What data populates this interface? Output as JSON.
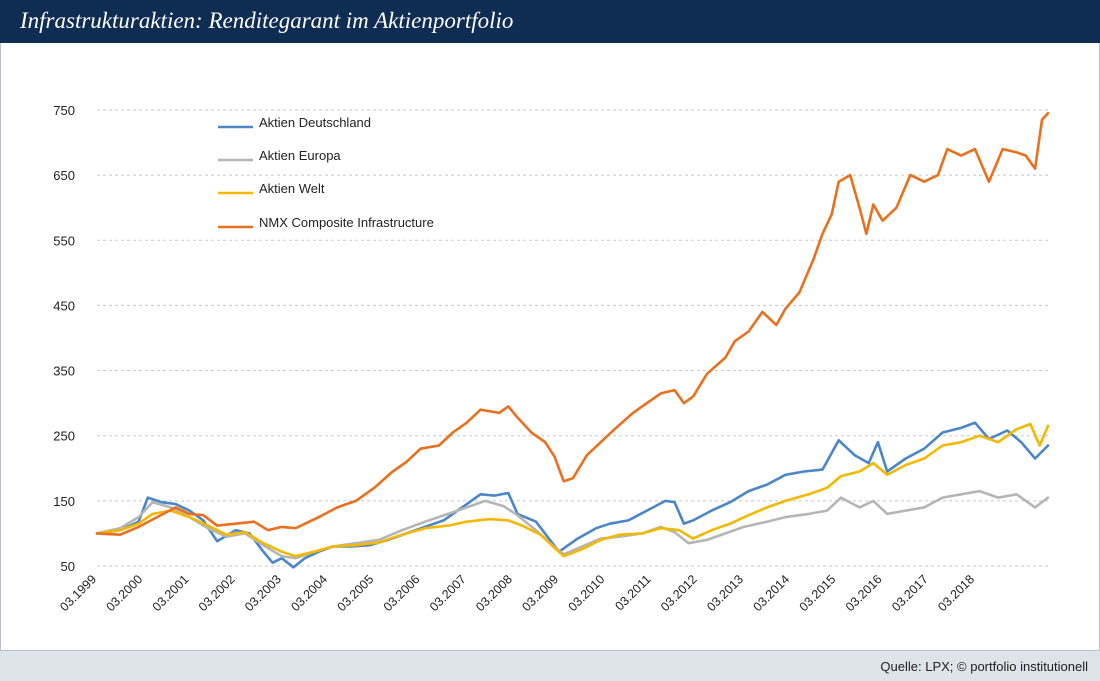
{
  "header": {
    "title": "Infrastrukturaktien: Renditegarant im Aktienportfolio"
  },
  "footer": {
    "source": "Quelle: LPX; © portfolio institutionell"
  },
  "colors": {
    "header_bg": "#0f2c52",
    "footer_bg": "#dfe3ea",
    "grid": "#c8c8c8"
  },
  "chart_data": {
    "type": "line",
    "title": "Infrastrukturaktien: Renditegarant im Aktienportfolio",
    "xlabel": "",
    "ylabel": "",
    "grid": true,
    "legend_position": "top-left",
    "x_start": 1999.0,
    "x_end": 2019.58,
    "xlim": [
      1999.0,
      2019.58
    ],
    "ylim": [
      50,
      750
    ],
    "y_ticks": [
      50,
      150,
      250,
      350,
      450,
      550,
      650,
      750
    ],
    "y_tick_labels": [
      "50",
      "150",
      "250",
      "350",
      "450",
      "550",
      "650",
      "750"
    ],
    "x_ticks": [
      1999,
      2000,
      2001,
      2002,
      2003,
      2004,
      2005,
      2006,
      2007,
      2008,
      2009,
      2010,
      2011,
      2012,
      2013,
      2014,
      2015,
      2016,
      2017,
      2018
    ],
    "x_tick_labels": [
      "03.1999",
      "03.2000",
      "03.2001",
      "03.2002",
      "03.2003",
      "03.2004",
      "03.2005",
      "03.2006",
      "03.2007",
      "03.2008",
      "03.2009",
      "03.2010",
      "03.2011",
      "03.2012",
      "03.2013",
      "03.2014",
      "03.2015",
      "03.2016",
      "03.2017",
      "03.2018"
    ],
    "series": [
      {
        "name": "Aktien Deutschland",
        "color": "#4a86c8",
        "points": [
          [
            1999.0,
            100
          ],
          [
            1999.5,
            105
          ],
          [
            1999.9,
            118
          ],
          [
            2000.1,
            155
          ],
          [
            2000.4,
            148
          ],
          [
            2000.7,
            145
          ],
          [
            2001.0,
            135
          ],
          [
            2001.3,
            120
          ],
          [
            2001.6,
            88
          ],
          [
            2002.0,
            105
          ],
          [
            2002.3,
            100
          ],
          [
            2002.6,
            72
          ],
          [
            2002.8,
            55
          ],
          [
            2003.0,
            62
          ],
          [
            2003.25,
            48
          ],
          [
            2003.5,
            62
          ],
          [
            2003.8,
            72
          ],
          [
            2004.1,
            80
          ],
          [
            2004.5,
            80
          ],
          [
            2004.9,
            82
          ],
          [
            2005.3,
            90
          ],
          [
            2005.7,
            100
          ],
          [
            2006.1,
            110
          ],
          [
            2006.5,
            120
          ],
          [
            2006.9,
            140
          ],
          [
            2007.3,
            160
          ],
          [
            2007.6,
            158
          ],
          [
            2007.9,
            162
          ],
          [
            2008.1,
            130
          ],
          [
            2008.5,
            118
          ],
          [
            2008.8,
            90
          ],
          [
            2009.0,
            72
          ],
          [
            2009.4,
            92
          ],
          [
            2009.8,
            108
          ],
          [
            2010.1,
            115
          ],
          [
            2010.5,
            120
          ],
          [
            2010.9,
            135
          ],
          [
            2011.3,
            150
          ],
          [
            2011.5,
            148
          ],
          [
            2011.7,
            115
          ],
          [
            2011.9,
            120
          ],
          [
            2012.3,
            135
          ],
          [
            2012.7,
            148
          ],
          [
            2013.1,
            165
          ],
          [
            2013.5,
            175
          ],
          [
            2013.9,
            190
          ],
          [
            2014.3,
            195
          ],
          [
            2014.7,
            198
          ],
          [
            2015.05,
            243
          ],
          [
            2015.4,
            220
          ],
          [
            2015.7,
            208
          ],
          [
            2015.9,
            240
          ],
          [
            2016.1,
            195
          ],
          [
            2016.5,
            215
          ],
          [
            2016.9,
            230
          ],
          [
            2017.3,
            255
          ],
          [
            2017.7,
            262
          ],
          [
            2018.0,
            270
          ],
          [
            2018.3,
            245
          ],
          [
            2018.7,
            258
          ],
          [
            2019.0,
            240
          ],
          [
            2019.3,
            215
          ],
          [
            2019.58,
            235
          ]
        ]
      },
      {
        "name": "Aktien Europa",
        "color": "#b5b5b5",
        "points": [
          [
            1999.0,
            100
          ],
          [
            1999.5,
            108
          ],
          [
            1999.9,
            125
          ],
          [
            2000.2,
            148
          ],
          [
            2000.6,
            140
          ],
          [
            2001.0,
            125
          ],
          [
            2001.4,
            108
          ],
          [
            2001.8,
            95
          ],
          [
            2002.2,
            100
          ],
          [
            2002.6,
            82
          ],
          [
            2003.0,
            65
          ],
          [
            2003.3,
            62
          ],
          [
            2003.7,
            72
          ],
          [
            2004.1,
            80
          ],
          [
            2004.6,
            85
          ],
          [
            2005.1,
            90
          ],
          [
            2005.6,
            105
          ],
          [
            2006.1,
            118
          ],
          [
            2006.6,
            130
          ],
          [
            2007.0,
            140
          ],
          [
            2007.4,
            150
          ],
          [
            2007.8,
            142
          ],
          [
            2008.1,
            128
          ],
          [
            2008.5,
            105
          ],
          [
            2008.8,
            85
          ],
          [
            2009.1,
            68
          ],
          [
            2009.5,
            80
          ],
          [
            2009.9,
            92
          ],
          [
            2010.3,
            95
          ],
          [
            2010.8,
            100
          ],
          [
            2011.2,
            110
          ],
          [
            2011.5,
            102
          ],
          [
            2011.8,
            85
          ],
          [
            2012.2,
            90
          ],
          [
            2012.6,
            100
          ],
          [
            2013.0,
            110
          ],
          [
            2013.5,
            118
          ],
          [
            2013.9,
            125
          ],
          [
            2014.4,
            130
          ],
          [
            2014.8,
            135
          ],
          [
            2015.1,
            155
          ],
          [
            2015.5,
            140
          ],
          [
            2015.8,
            150
          ],
          [
            2016.1,
            130
          ],
          [
            2016.5,
            135
          ],
          [
            2016.9,
            140
          ],
          [
            2017.3,
            155
          ],
          [
            2017.7,
            160
          ],
          [
            2018.1,
            165
          ],
          [
            2018.5,
            155
          ],
          [
            2018.9,
            160
          ],
          [
            2019.3,
            140
          ],
          [
            2019.58,
            155
          ]
        ]
      },
      {
        "name": "Aktien Welt",
        "color": "#f5b800",
        "points": [
          [
            1999.0,
            100
          ],
          [
            1999.5,
            105
          ],
          [
            1999.9,
            115
          ],
          [
            2000.2,
            130
          ],
          [
            2000.6,
            135
          ],
          [
            2001.0,
            125
          ],
          [
            2001.4,
            112
          ],
          [
            2001.8,
            98
          ],
          [
            2002.2,
            102
          ],
          [
            2002.6,
            85
          ],
          [
            2003.0,
            72
          ],
          [
            2003.3,
            65
          ],
          [
            2003.7,
            72
          ],
          [
            2004.1,
            80
          ],
          [
            2004.6,
            82
          ],
          [
            2005.1,
            86
          ],
          [
            2005.6,
            98
          ],
          [
            2006.1,
            108
          ],
          [
            2006.6,
            112
          ],
          [
            2007.0,
            118
          ],
          [
            2007.5,
            122
          ],
          [
            2007.9,
            120
          ],
          [
            2008.2,
            112
          ],
          [
            2008.6,
            98
          ],
          [
            2008.9,
            78
          ],
          [
            2009.1,
            65
          ],
          [
            2009.5,
            76
          ],
          [
            2009.9,
            90
          ],
          [
            2010.3,
            98
          ],
          [
            2010.8,
            100
          ],
          [
            2011.2,
            108
          ],
          [
            2011.6,
            105
          ],
          [
            2011.9,
            92
          ],
          [
            2012.3,
            105
          ],
          [
            2012.7,
            115
          ],
          [
            2013.1,
            128
          ],
          [
            2013.5,
            140
          ],
          [
            2013.9,
            150
          ],
          [
            2014.4,
            160
          ],
          [
            2014.8,
            170
          ],
          [
            2015.1,
            188
          ],
          [
            2015.5,
            195
          ],
          [
            2015.8,
            208
          ],
          [
            2016.1,
            190
          ],
          [
            2016.5,
            205
          ],
          [
            2016.9,
            215
          ],
          [
            2017.3,
            235
          ],
          [
            2017.7,
            240
          ],
          [
            2018.1,
            250
          ],
          [
            2018.5,
            240
          ],
          [
            2018.9,
            260
          ],
          [
            2019.2,
            268
          ],
          [
            2019.4,
            235
          ],
          [
            2019.58,
            265
          ]
        ]
      },
      {
        "name": "NMX Composite Infrastructure",
        "color": "#e8701f",
        "points": [
          [
            1999.0,
            100
          ],
          [
            1999.5,
            98
          ],
          [
            1999.9,
            110
          ],
          [
            2000.3,
            125
          ],
          [
            2000.7,
            140
          ],
          [
            2001.0,
            130
          ],
          [
            2001.3,
            128
          ],
          [
            2001.6,
            112
          ],
          [
            2002.0,
            115
          ],
          [
            2002.4,
            118
          ],
          [
            2002.7,
            105
          ],
          [
            2003.0,
            110
          ],
          [
            2003.3,
            108
          ],
          [
            2003.8,
            125
          ],
          [
            2004.2,
            140
          ],
          [
            2004.6,
            150
          ],
          [
            2005.0,
            170
          ],
          [
            2005.4,
            195
          ],
          [
            2005.7,
            210
          ],
          [
            2006.0,
            230
          ],
          [
            2006.4,
            235
          ],
          [
            2006.7,
            255
          ],
          [
            2007.0,
            270
          ],
          [
            2007.3,
            290
          ],
          [
            2007.7,
            285
          ],
          [
            2007.9,
            295
          ],
          [
            2008.1,
            278
          ],
          [
            2008.4,
            255
          ],
          [
            2008.7,
            240
          ],
          [
            2008.9,
            218
          ],
          [
            2009.1,
            180
          ],
          [
            2009.3,
            185
          ],
          [
            2009.6,
            220
          ],
          [
            2009.9,
            240
          ],
          [
            2010.2,
            260
          ],
          [
            2010.6,
            285
          ],
          [
            2010.9,
            300
          ],
          [
            2011.2,
            315
          ],
          [
            2011.5,
            320
          ],
          [
            2011.7,
            300
          ],
          [
            2011.9,
            310
          ],
          [
            2012.2,
            345
          ],
          [
            2012.6,
            370
          ],
          [
            2012.8,
            395
          ],
          [
            2013.1,
            410
          ],
          [
            2013.4,
            440
          ],
          [
            2013.7,
            420
          ],
          [
            2013.9,
            445
          ],
          [
            2014.2,
            470
          ],
          [
            2014.5,
            520
          ],
          [
            2014.7,
            560
          ],
          [
            2014.9,
            590
          ],
          [
            2015.05,
            640
          ],
          [
            2015.3,
            650
          ],
          [
            2015.5,
            600
          ],
          [
            2015.65,
            560
          ],
          [
            2015.8,
            605
          ],
          [
            2016.0,
            580
          ],
          [
            2016.3,
            600
          ],
          [
            2016.6,
            650
          ],
          [
            2016.9,
            640
          ],
          [
            2017.2,
            650
          ],
          [
            2017.4,
            690
          ],
          [
            2017.7,
            680
          ],
          [
            2018.0,
            690
          ],
          [
            2018.3,
            640
          ],
          [
            2018.6,
            690
          ],
          [
            2018.9,
            685
          ],
          [
            2019.1,
            680
          ],
          [
            2019.3,
            660
          ],
          [
            2019.45,
            735
          ],
          [
            2019.58,
            745
          ]
        ]
      }
    ]
  }
}
